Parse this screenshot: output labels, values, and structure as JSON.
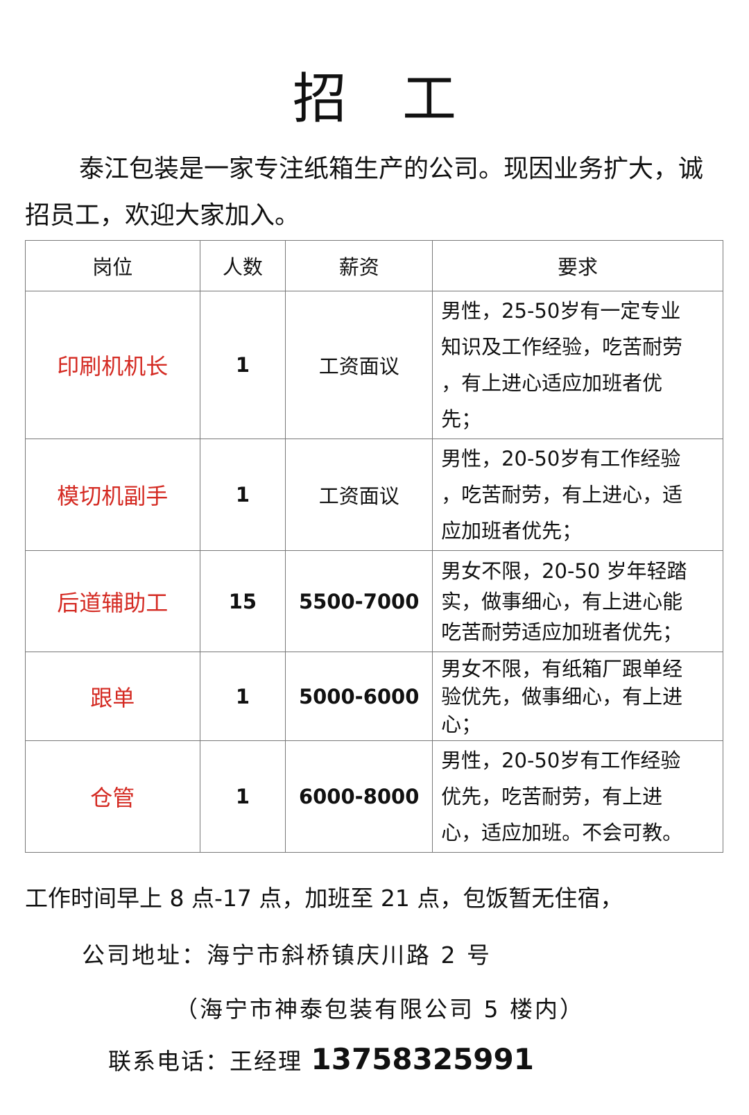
{
  "title": "招工",
  "intro": "泰江包装是一家专注纸箱生产的公司。现因业务扩大，诚招员工，欢迎大家加入。",
  "table": {
    "headers": [
      "岗位",
      "人数",
      "薪资",
      "要求"
    ],
    "rows": [
      {
        "position": "印刷机机长",
        "count": "1",
        "salary": "工资面议",
        "requirements": [
          "男性，25-50岁有一定专业",
          "知识及工作经验，吃苦耐劳",
          "，有上进心适应加班者优",
          "先；"
        ]
      },
      {
        "position": "模切机副手",
        "count": "1",
        "salary": "工资面议",
        "requirements": [
          "男性，20-50岁有工作经验",
          "，吃苦耐劳，有上进心，适",
          "应加班者优先；"
        ]
      },
      {
        "position": "后道辅助工",
        "count": "15",
        "salary": "5500-7000",
        "requirements": [
          "男女不限，20-50 岁年轻踏",
          "实，做事细心，有上进心能",
          "吃苦耐劳适应加班者优先；"
        ]
      },
      {
        "position": "跟单",
        "count": "1",
        "salary": "5000-6000",
        "requirements": [
          "男女不限，有纸箱厂跟单经",
          "验优先，做事细心，有上进",
          "心；"
        ]
      },
      {
        "position": "仓管",
        "count": "1",
        "salary": "6000-8000",
        "requirements": [
          "男性，20-50岁有工作经验",
          "优先，吃苦耐劳，有上进",
          "心，适应加班。不会可教。"
        ]
      }
    ]
  },
  "footer": {
    "hours": "工作时间早上 8 点-17 点，加班至 21 点，包饭暂无住宿，",
    "address": "公司地址：海宁市斜桥镇庆川路 2 号",
    "address_note": "（海宁市神泰包装有限公司 5 楼内）",
    "contact_label": "联系电话：王经理",
    "phone": "13758325991"
  },
  "colors": {
    "position_text": "#d42a22",
    "border": "#777777"
  }
}
